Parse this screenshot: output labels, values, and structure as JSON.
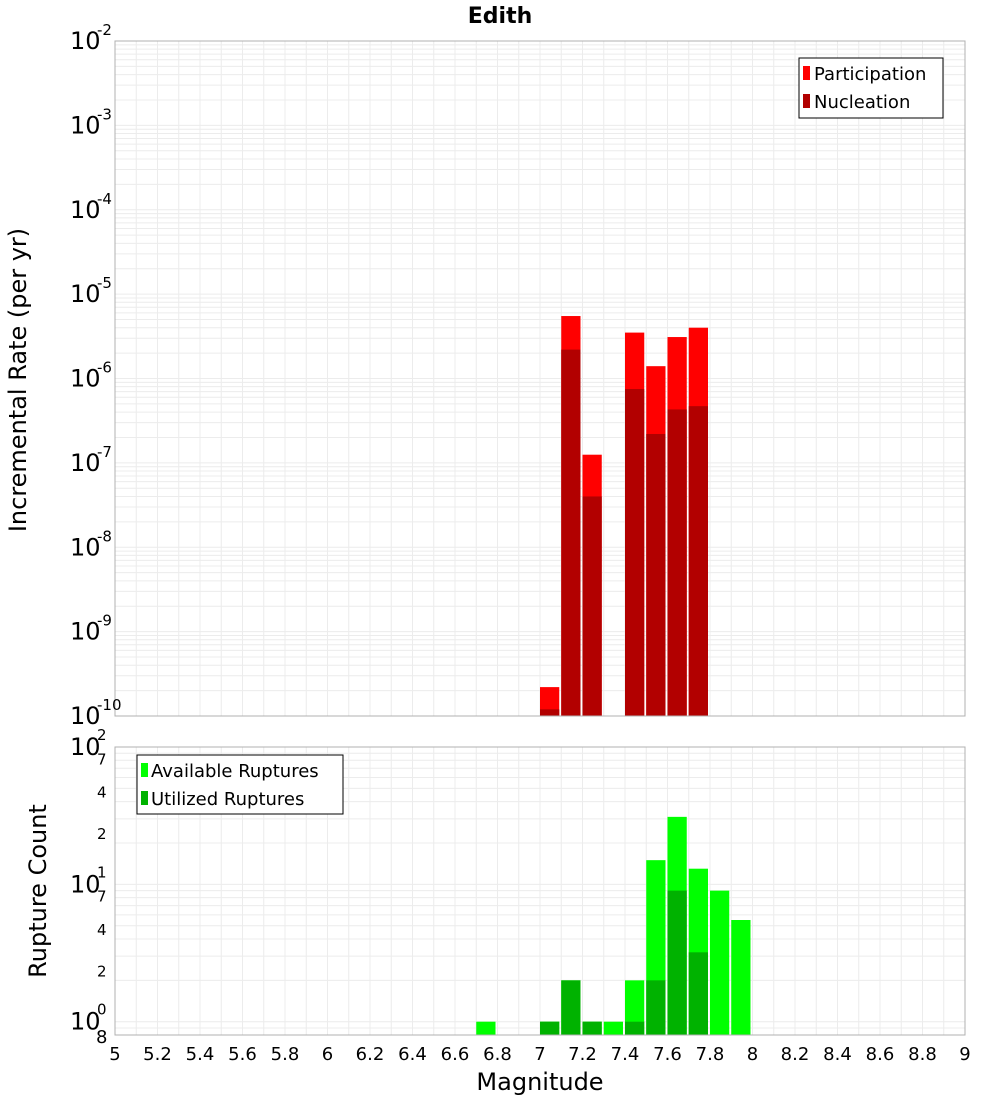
{
  "chart_data": [
    {
      "type": "bar",
      "title": "Edith",
      "xlabel": "Magnitude",
      "ylabel": "Incremental Rate (per yr)",
      "yscale": "log",
      "ylim": [
        1e-10,
        0.01
      ],
      "xlim": [
        5,
        9
      ],
      "bin_width": 0.1,
      "grid": true,
      "legend_position": "top-right",
      "y_tick_labels": [
        {
          "value": 1e-10,
          "base": "10",
          "exp": "-10"
        },
        {
          "value": 1e-09,
          "base": "10",
          "exp": "-9"
        },
        {
          "value": 1e-08,
          "base": "10",
          "exp": "-8"
        },
        {
          "value": 1e-07,
          "base": "10",
          "exp": "-7"
        },
        {
          "value": 1e-06,
          "base": "10",
          "exp": "-6"
        },
        {
          "value": 1e-05,
          "base": "10",
          "exp": "-5"
        },
        {
          "value": 0.0001,
          "base": "10",
          "exp": "-4"
        },
        {
          "value": 0.001,
          "base": "10",
          "exp": "-3"
        },
        {
          "value": 0.01,
          "base": "10",
          "exp": "-2"
        }
      ],
      "series": [
        {
          "name": "Participation",
          "color": "#ff0000",
          "x": [
            7.05,
            7.15,
            7.25,
            7.45,
            7.55,
            7.65,
            7.75
          ],
          "values": [
            2.2e-10,
            5.5e-06,
            1.25e-07,
            3.5e-06,
            1.4e-06,
            3.1e-06,
            4e-06
          ]
        },
        {
          "name": "Nucleation",
          "color": "#b20000",
          "x": [
            7.05,
            7.15,
            7.25,
            7.45,
            7.55,
            7.65,
            7.75
          ],
          "values": [
            1.2e-10,
            2.2e-06,
            4e-08,
            7.5e-07,
            2.2e-07,
            4.3e-07,
            4.7e-07
          ]
        }
      ]
    },
    {
      "type": "bar",
      "title": "",
      "xlabel": "Magnitude",
      "ylabel": "Rupture Count",
      "yscale": "log",
      "ylim": [
        0.8,
        100
      ],
      "xlim": [
        5,
        9
      ],
      "bin_width": 0.1,
      "grid": true,
      "legend_position": "top-left",
      "x_tick_labels": [
        "5",
        "5.2",
        "5.4",
        "5.6",
        "5.8",
        "6",
        "6.2",
        "6.4",
        "6.6",
        "6.8",
        "7",
        "7.2",
        "7.4",
        "7.6",
        "7.8",
        "8",
        "8.2",
        "8.4",
        "8.6",
        "8.8",
        "9"
      ],
      "y_major_ticks": [
        {
          "value": 1,
          "base": "10",
          "exp": "0"
        },
        {
          "value": 10,
          "base": "10",
          "exp": "1"
        },
        {
          "value": 100,
          "base": "10",
          "exp": "2"
        }
      ],
      "y_minor_ticks": [
        {
          "value": 0.8,
          "label": "8"
        },
        {
          "value": 2,
          "label": "2"
        },
        {
          "value": 4,
          "label": "4"
        },
        {
          "value": 7,
          "label": "7"
        },
        {
          "value": 20,
          "label": "2"
        },
        {
          "value": 40,
          "label": "4"
        },
        {
          "value": 70,
          "label": "7"
        }
      ],
      "series": [
        {
          "name": "Available Ruptures",
          "color": "#00ff00",
          "x": [
            6.75,
            7.05,
            7.15,
            7.25,
            7.35,
            7.45,
            7.55,
            7.65,
            7.75,
            7.85,
            7.95
          ],
          "values": [
            1,
            1,
            2,
            1,
            1,
            2,
            15,
            31,
            13,
            9,
            5.5
          ]
        },
        {
          "name": "Utilized Ruptures",
          "color": "#00b200",
          "x": [
            7.05,
            7.15,
            7.25,
            7.45,
            7.55,
            7.65,
            7.75
          ],
          "values": [
            1,
            2,
            1,
            1,
            2,
            9,
            3.2
          ]
        }
      ]
    }
  ]
}
